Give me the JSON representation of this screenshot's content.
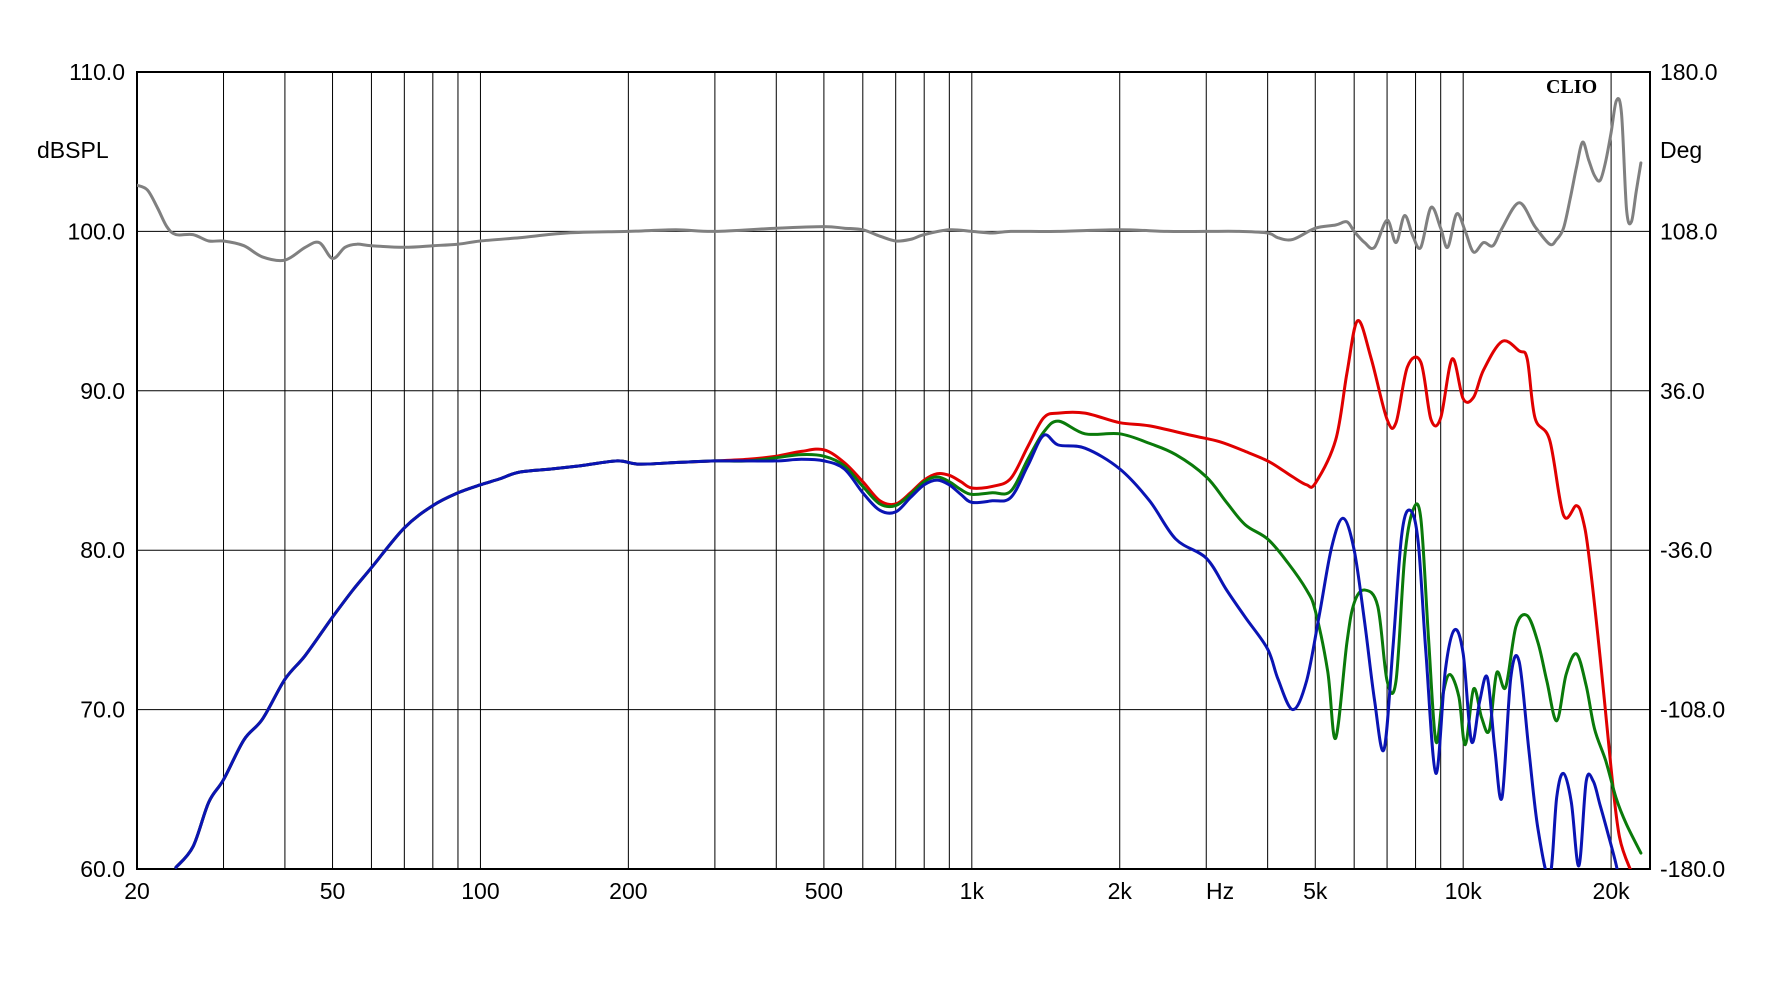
{
  "chart_data": {
    "type": "line",
    "title": "",
    "brand": "CLIO",
    "xlabel": "Hz",
    "ylabel": "dBSPL",
    "y2label": "Deg",
    "x_scale": "log",
    "xlim": [
      20,
      24000
    ],
    "ylim": [
      60,
      110
    ],
    "y2lim": [
      -180,
      180
    ],
    "x_ticks": [
      {
        "value": 20,
        "label": "20"
      },
      {
        "value": 50,
        "label": "50"
      },
      {
        "value": 100,
        "label": "100"
      },
      {
        "value": 200,
        "label": "200"
      },
      {
        "value": 500,
        "label": "500"
      },
      {
        "value": 1000,
        "label": "1k"
      },
      {
        "value": 2000,
        "label": "2k"
      },
      {
        "value": 5000,
        "label": "5k"
      },
      {
        "value": 10000,
        "label": "10k"
      },
      {
        "value": 20000,
        "label": "20k"
      }
    ],
    "y_ticks": [
      "110.0",
      "100.0",
      "90.0",
      "80.0",
      "70.0",
      "60.0"
    ],
    "y2_ticks": [
      "180.0",
      "108.0",
      "36.0",
      "-36.0",
      "-108.0",
      "-180.0"
    ],
    "grid": true,
    "legend": "none",
    "series": [
      {
        "color": "#808080",
        "x": [
          20,
          21,
          22,
          23,
          24,
          26,
          28,
          30,
          33,
          36,
          40,
          44,
          47,
          50,
          53,
          56,
          60,
          70,
          80,
          90,
          100,
          120,
          150,
          200,
          250,
          300,
          400,
          500,
          550,
          600,
          650,
          700,
          750,
          800,
          900,
          1000,
          1100,
          1200,
          1500,
          2000,
          2500,
          3000,
          3500,
          4000,
          4200,
          4500,
          5000,
          5500,
          5800,
          6000,
          6300,
          6600,
          7000,
          7300,
          7600,
          7900,
          8200,
          8600,
          9000,
          9300,
          9700,
          10100,
          10500,
          11000,
          11500,
          12000,
          13000,
          14000,
          15000,
          15500,
          16000,
          16500,
          17000,
          17500,
          18000,
          18500,
          19000,
          19500,
          20000,
          20500,
          21000,
          21500,
          22000,
          22500,
          23000
        ],
        "values": [
          102.9,
          102.6,
          101.5,
          100.3,
          99.8,
          99.8,
          99.4,
          99.4,
          99.1,
          98.4,
          98.2,
          99.0,
          99.3,
          98.3,
          99.0,
          99.2,
          99.1,
          99.0,
          99.1,
          99.2,
          99.4,
          99.6,
          99.9,
          100.0,
          100.1,
          100.0,
          100.2,
          100.3,
          100.2,
          100.1,
          99.7,
          99.4,
          99.5,
          99.8,
          100.1,
          100.0,
          99.9,
          100.0,
          100.0,
          100.1,
          100.0,
          100.0,
          100.0,
          99.9,
          99.6,
          99.5,
          100.2,
          100.4,
          100.6,
          100.0,
          99.3,
          99.0,
          100.7,
          99.3,
          101.0,
          99.7,
          99.0,
          101.5,
          100.2,
          99.0,
          101.1,
          100.0,
          98.7,
          99.3,
          99.1,
          100.2,
          101.8,
          100.3,
          99.2,
          99.5,
          100.2,
          102.0,
          104.0,
          105.6,
          104.5,
          103.5,
          103.2,
          104.4,
          106.2,
          108.2,
          107.4,
          101.4,
          100.6,
          102.5,
          104.3
        ]
      },
      {
        "color": "#e00000",
        "x": [
          24,
          26,
          28,
          30,
          33,
          36,
          40,
          44,
          50,
          55,
          60,
          70,
          80,
          90,
          100,
          110,
          120,
          140,
          160,
          190,
          210,
          250,
          300,
          350,
          400,
          450,
          500,
          550,
          600,
          650,
          700,
          750,
          800,
          850,
          900,
          950,
          1000,
          1100,
          1200,
          1300,
          1400,
          1500,
          1700,
          2000,
          2300,
          2800,
          3200,
          3600,
          4000,
          4300,
          4500,
          4800,
          5000,
          5500,
          5800,
          6100,
          6500,
          7000,
          7300,
          7700,
          8200,
          8600,
          9000,
          9500,
          10000,
          10500,
          11000,
          12000,
          13000,
          13500,
          14000,
          15000,
          16000,
          17000,
          17500,
          18000,
          19000,
          20000,
          20800,
          22000
        ],
        "values": [
          60.1,
          61.4,
          64.2,
          65.6,
          68.1,
          69.4,
          71.9,
          73.4,
          75.8,
          77.5,
          78.9,
          81.4,
          82.8,
          83.6,
          84.1,
          84.5,
          84.9,
          85.1,
          85.3,
          85.6,
          85.4,
          85.5,
          85.6,
          85.7,
          85.9,
          86.2,
          86.3,
          85.5,
          84.3,
          83.1,
          82.9,
          83.6,
          84.4,
          84.8,
          84.7,
          84.3,
          83.9,
          84.0,
          84.5,
          86.5,
          88.3,
          88.6,
          88.6,
          88.0,
          87.8,
          87.2,
          86.8,
          86.2,
          85.6,
          85.0,
          84.6,
          84.1,
          84.2,
          86.9,
          91.1,
          94.4,
          92.0,
          88.2,
          88.0,
          91.5,
          91.8,
          88.2,
          88.3,
          92.0,
          89.5,
          89.6,
          91.3,
          93.1,
          92.5,
          92.0,
          88.3,
          86.9,
          82.2,
          82.8,
          82.0,
          79.8,
          73.3,
          66.3,
          62.0,
          59.8
        ]
      },
      {
        "color": "#0a7a0a",
        "x": [
          24,
          26,
          28,
          30,
          33,
          36,
          40,
          44,
          50,
          55,
          60,
          70,
          80,
          90,
          100,
          110,
          120,
          140,
          160,
          190,
          210,
          250,
          300,
          350,
          400,
          450,
          500,
          550,
          600,
          650,
          700,
          750,
          800,
          850,
          900,
          950,
          1000,
          1100,
          1200,
          1300,
          1400,
          1500,
          1700,
          2000,
          2300,
          2600,
          3000,
          3300,
          3600,
          4000,
          4400,
          4800,
          5000,
          5300,
          5500,
          5800,
          6000,
          6300,
          6700,
          7000,
          7300,
          7600,
          7900,
          8200,
          8500,
          8800,
          9100,
          9400,
          9800,
          10100,
          10500,
          10900,
          11300,
          11700,
          12200,
          12800,
          13500,
          14200,
          14800,
          15500,
          16200,
          17000,
          17800,
          18500,
          19500,
          20500,
          21500,
          23000
        ],
        "values": [
          60.1,
          61.4,
          64.2,
          65.6,
          68.1,
          69.4,
          71.9,
          73.4,
          75.8,
          77.5,
          78.9,
          81.4,
          82.8,
          83.6,
          84.1,
          84.5,
          84.9,
          85.1,
          85.3,
          85.6,
          85.4,
          85.5,
          85.6,
          85.6,
          85.8,
          86.0,
          85.9,
          85.3,
          84.0,
          82.9,
          82.8,
          83.5,
          84.3,
          84.6,
          84.3,
          83.8,
          83.5,
          83.6,
          83.7,
          85.7,
          87.4,
          88.1,
          87.3,
          87.3,
          86.7,
          86.0,
          84.6,
          83.0,
          81.6,
          80.7,
          79.2,
          77.5,
          76.2,
          72.4,
          68.2,
          74.2,
          76.7,
          77.5,
          76.5,
          71.8,
          71.8,
          79.5,
          82.5,
          82.0,
          74.5,
          68.0,
          71.0,
          72.2,
          70.8,
          67.8,
          71.3,
          69.5,
          68.7,
          72.3,
          71.4,
          75.2,
          75.9,
          74.2,
          71.8,
          69.3,
          72.2,
          73.5,
          71.5,
          68.8,
          66.8,
          64.4,
          62.8,
          61.0
        ]
      },
      {
        "color": "#0a14b4",
        "x": [
          24,
          26,
          28,
          30,
          33,
          36,
          40,
          44,
          50,
          55,
          60,
          70,
          80,
          90,
          100,
          110,
          120,
          140,
          160,
          190,
          210,
          250,
          300,
          350,
          400,
          450,
          500,
          550,
          600,
          650,
          700,
          750,
          800,
          850,
          900,
          950,
          1000,
          1100,
          1200,
          1300,
          1400,
          1500,
          1700,
          2000,
          2300,
          2600,
          3000,
          3300,
          3600,
          4000,
          4200,
          4500,
          4800,
          5100,
          5400,
          5700,
          6000,
          6300,
          6600,
          6900,
          7200,
          7500,
          7800,
          8100,
          8400,
          8800,
          9200,
          9600,
          10000,
          10400,
          10800,
          11200,
          11600,
          12000,
          12500,
          13000,
          13600,
          14200,
          15000,
          15500,
          16000,
          16600,
          17200,
          17800,
          18400,
          19000,
          19800,
          20500,
          21000,
          21500
        ],
        "values": [
          60.1,
          61.4,
          64.2,
          65.6,
          68.1,
          69.4,
          71.9,
          73.4,
          75.8,
          77.5,
          78.9,
          81.4,
          82.8,
          83.6,
          84.1,
          84.5,
          84.9,
          85.1,
          85.3,
          85.6,
          85.4,
          85.5,
          85.6,
          85.6,
          85.6,
          85.7,
          85.6,
          85.1,
          83.6,
          82.5,
          82.4,
          83.3,
          84.1,
          84.4,
          84.1,
          83.5,
          83.0,
          83.1,
          83.3,
          85.3,
          87.2,
          86.6,
          86.4,
          85.1,
          83.1,
          80.7,
          79.5,
          77.5,
          75.8,
          73.8,
          71.9,
          70.0,
          71.8,
          76.0,
          80.2,
          82.0,
          80.0,
          75.5,
          70.6,
          67.5,
          74.0,
          81.0,
          82.5,
          80.5,
          73.5,
          66.0,
          72.5,
          75.0,
          73.5,
          68.0,
          70.5,
          72.0,
          67.5,
          64.5,
          72.0,
          73.0,
          67.5,
          62.5,
          59.5,
          64.5,
          66.0,
          64.2,
          60.2,
          65.5,
          65.5,
          64.0,
          62.0,
          60.2,
          58.5,
          58.0
        ]
      }
    ]
  }
}
